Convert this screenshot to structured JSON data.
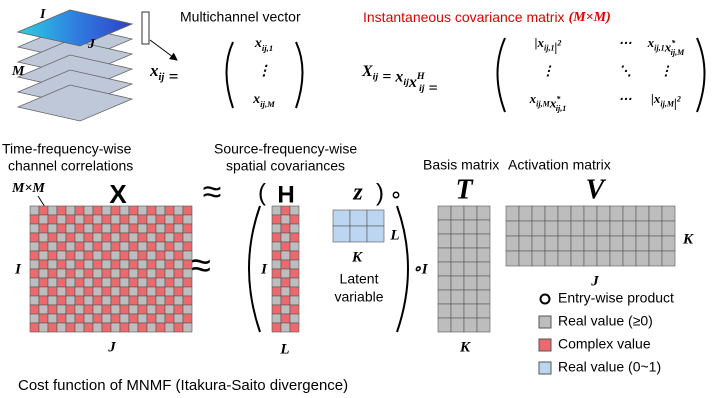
{
  "top": {
    "dims": [
      "I",
      "J",
      "M"
    ],
    "vector_title": "Multichannel vector",
    "cov_title": "Instantaneous covariance matrix",
    "cov_size": "(M×M)",
    "vector_lhs": [
      {
        "base": "x",
        "sub": "ij"
      },
      {
        "base": " ="
      }
    ],
    "vector_entries": [
      [
        {
          "base": "x",
          "sub": "ij,1"
        }
      ],
      [
        {
          "base": "⋮"
        }
      ],
      [
        {
          "base": "x",
          "sub": "ij,M"
        }
      ]
    ],
    "cov_lhs": [
      {
        "base": "X",
        "sub": "ij"
      },
      {
        "base": " = "
      },
      {
        "base": "x",
        "sub": "ij"
      },
      {
        "base": "x",
        "sup": "H",
        "sub": "ij"
      },
      {
        "base": " ="
      }
    ],
    "cov_entries": [
      [
        [
          {
            "pre": "|",
            "base": "x",
            "sub": "ij,1",
            "post": "|",
            "post_sup": "2"
          }
        ],
        [
          {
            "base": "⋯"
          }
        ],
        [
          {
            "base": "x",
            "sub": "ij,1"
          },
          {
            "base": "x",
            "sup": "*",
            "sub": "ij,M"
          }
        ]
      ],
      [
        [
          {
            "base": "⋮"
          }
        ],
        [
          {
            "base": "⋱"
          }
        ],
        [
          {
            "base": "⋮"
          }
        ]
      ],
      [
        [
          {
            "base": "x",
            "sub": "ij,M"
          },
          {
            "base": "x",
            "sup": "*",
            "sub": "ij,1"
          }
        ],
        [
          {
            "base": "⋯"
          }
        ],
        [
          {
            "pre": "|",
            "base": "x",
            "sub": "ij,M",
            "post": "|",
            "post_sup": "2"
          }
        ]
      ]
    ]
  },
  "middle": {
    "x_title": [
      "Time-frequency-wise",
      "channel correlations"
    ],
    "s_title": [
      "Source-frequency-wise",
      "spatial covariances"
    ],
    "basis_title": "Basis matrix",
    "activation_title": "Activation matrix",
    "symbols": [
      "X",
      "≈",
      "(",
      "H",
      "z",
      ")",
      "∘",
      "T",
      "V"
    ],
    "mm": "M×M",
    "approx2": "≈",
    "dim_labels": [
      "I",
      "J",
      "I",
      "L",
      "K",
      "L",
      "∘I",
      "K",
      "K",
      "J"
    ],
    "latent": [
      "Latent",
      "variable"
    ]
  },
  "legend": [
    {
      "label": "Entry-wise product",
      "marker": "circle"
    },
    {
      "label": "Real value (≥0)",
      "color": "#bdbdbd"
    },
    {
      "label": "Complex value",
      "color": "#ec6a6e"
    },
    {
      "label": "Real value (0~1)",
      "color": "#bcd5f0"
    }
  ],
  "footer": "Cost function of MNMF (Itakura-Saito divergence)"
}
